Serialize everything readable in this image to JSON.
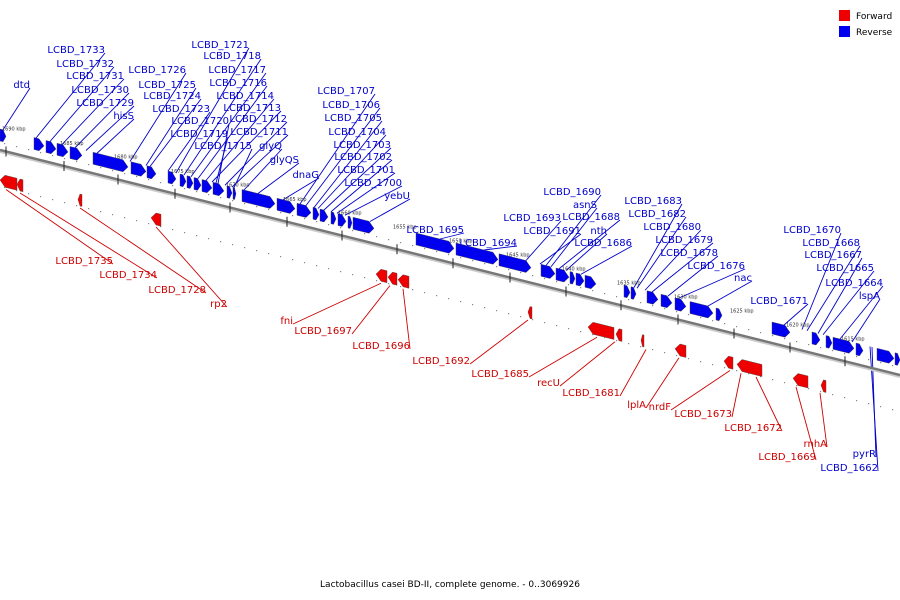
{
  "caption": "Lactobacillus casei BD-II, complete genome. - 0..3069926",
  "legend": [
    {
      "label": "Forward",
      "color": "#ee0000"
    },
    {
      "label": "Reverse",
      "color": "#0000ee"
    }
  ],
  "colors": {
    "forward": "#ee0000",
    "reverse": "#0000ee",
    "forward_label": "#cc0000",
    "reverse_label": "#0000cc",
    "axis": "#888888"
  },
  "scale_ticks": [
    "1690 kbp",
    "1685 kbp",
    "1680 kbp",
    "1675 kbp",
    "1670 kbp",
    "1665 kbp",
    "1660 kbp",
    "1655 kbp",
    "1650 kbp",
    "1645 kbp",
    "1640 kbp",
    "1635 kbp",
    "1630 kbp",
    "1625 kbp",
    "1620 kbp",
    "1615 kbp"
  ],
  "reverse_labels": [
    "dtd",
    "LCBD_1733",
    "LCBD_1732",
    "LCBD_1731",
    "LCBD_1730",
    "LCBD_1729",
    "hisS",
    "LCBD_1726",
    "LCBD_1725",
    "LCBD_1724",
    "LCBD_1723",
    "LCBD_1721",
    "LCBD_1718",
    "LCBD_1717",
    "LCBD_1716",
    "LCBD_1714",
    "LCBD_1713",
    "LCBD_1720",
    "LCBD_1712",
    "LCBD_1719",
    "LCBD_1711",
    "LCBD_1715",
    "glyQ",
    "glyQS",
    "dnaG",
    "LCBD_1707",
    "LCBD_1706",
    "LCBD_1705",
    "LCBD_1704",
    "LCBD_1703",
    "LCBD_1702",
    "LCBD_1701",
    "LCBD_1700",
    "yebU",
    "LCBD_1695",
    "LCBD_1694",
    "LCBD_1693",
    "LCBD_1691",
    "LCBD_1690",
    "asnS",
    "LCBD_1688",
    "nth",
    "LCBD_1686",
    "LCBD_1683",
    "LCBD_1682",
    "LCBD_1680",
    "LCBD_1679",
    "LCBD_1678",
    "LCBD_1676",
    "nac",
    "LCBD_1671",
    "LCBD_1670",
    "LCBD_1668",
    "LCBD_1667",
    "LCBD_1665",
    "LCBD_1664",
    "lspA",
    "LCBD_1662",
    "pyrR"
  ],
  "forward_labels": [
    "LCBD_1735",
    "LCBD_1734",
    "LCBD_1728",
    "rp2",
    "fni",
    "LCBD_1697",
    "LCBD_1696",
    "LCBD_1692",
    "LCBD_1685",
    "recU",
    "LCBD_1681",
    "lplA",
    "nrdF",
    "LCBD_1673",
    "LCBD_1672",
    "LCBD_1669",
    "rnhA"
  ]
}
